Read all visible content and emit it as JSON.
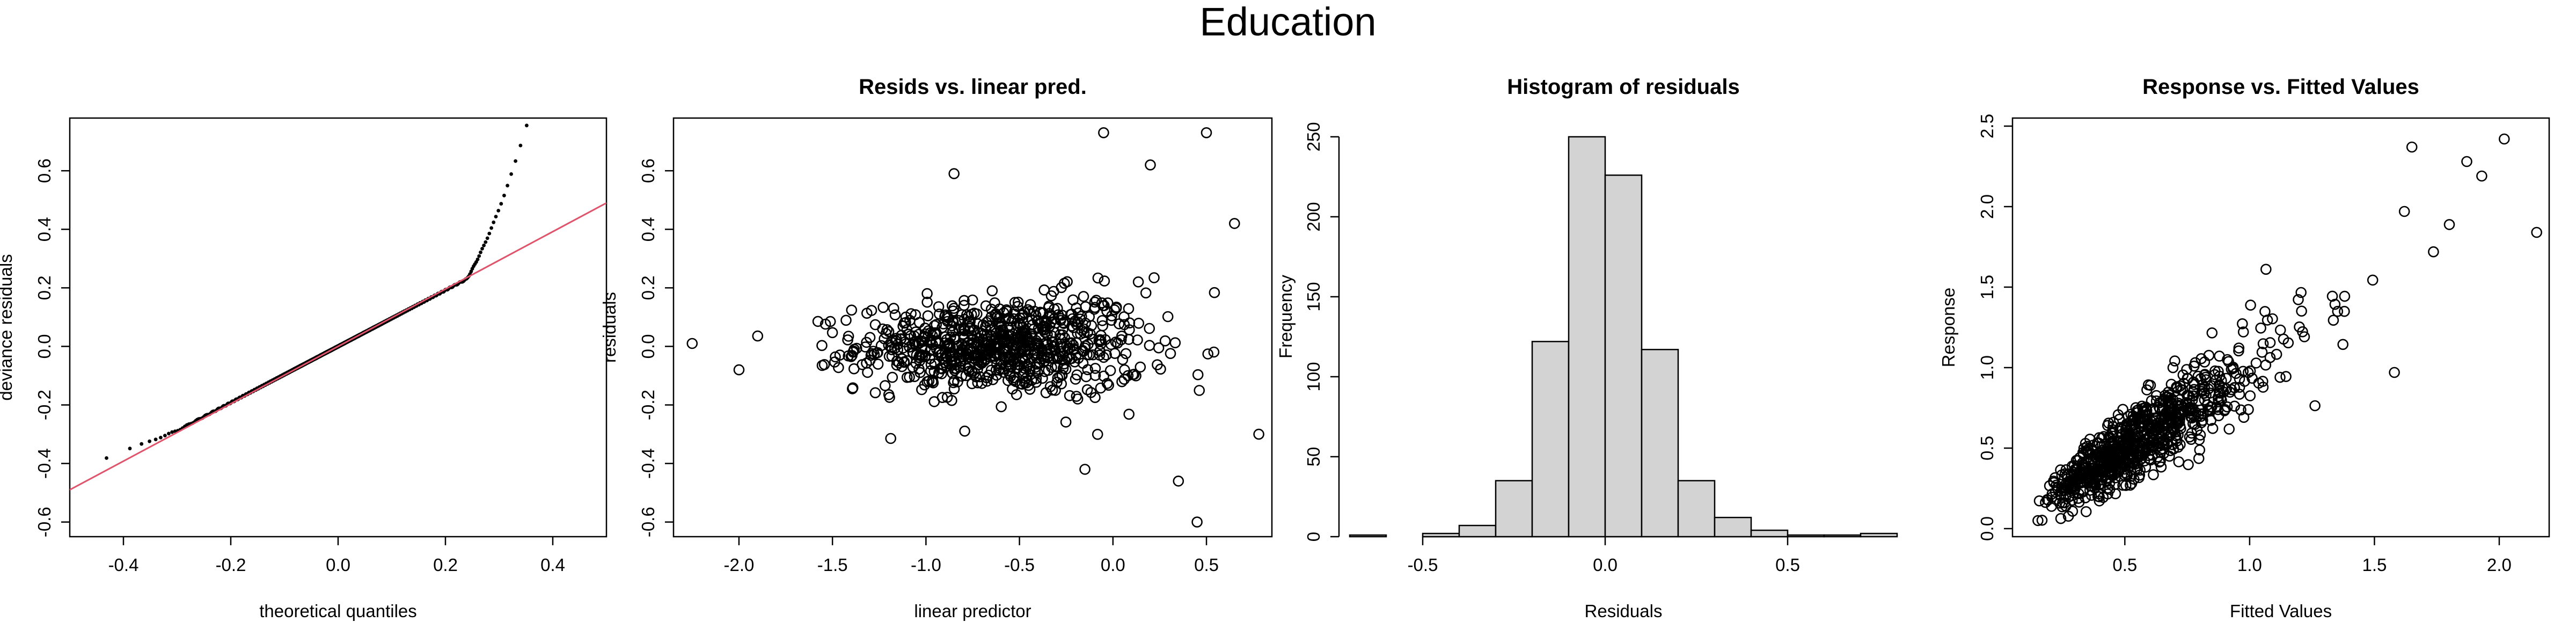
{
  "figure_title": "Education",
  "chart_data": [
    {
      "type": "scatter",
      "title": "",
      "xlabel": "theoretical quantiles",
      "ylabel": "deviance residuals",
      "xlim": [
        -0.5,
        0.5
      ],
      "ylim": [
        -0.65,
        0.78
      ],
      "xticks": [
        "-0.4",
        "-0.2",
        "0.0",
        "0.2",
        "0.4"
      ],
      "yticks": [
        "-0.6",
        "-0.4",
        "-0.2",
        "0.0",
        "0.2",
        "0.4",
        "0.6"
      ],
      "reference_line": {
        "intercept": 0.0,
        "slope": 0.98,
        "color": "#DF536B"
      },
      "series": [
        {
          "description": "sorted deviance residuals vs normal quantiles (~850 points, light tails, heavy upper tail)"
        }
      ]
    },
    {
      "type": "scatter",
      "title": "Resids vs. linear pred.",
      "xlabel": "linear predictor",
      "ylabel": "residuals",
      "xlim": [
        -2.35,
        0.85
      ],
      "ylim": [
        -0.65,
        0.78
      ],
      "xticks": [
        "-2.0",
        "-1.5",
        "-1.0",
        "-0.5",
        "0.0",
        "0.5"
      ],
      "yticks": [
        "-0.6",
        "-0.4",
        "-0.2",
        "0.0",
        "0.2",
        "0.4",
        "0.6"
      ],
      "series": [
        {
          "description": "~850 points centered near x=-0.6, y=0, spread increasing to the right",
          "highlighted_points": [
            [
              -2.25,
              0.01
            ],
            [
              -2.0,
              -0.08
            ],
            [
              -0.85,
              0.59
            ],
            [
              -0.05,
              0.73
            ],
            [
              0.2,
              0.62
            ],
            [
              0.5,
              0.73
            ],
            [
              0.65,
              0.42
            ],
            [
              0.78,
              -0.3
            ],
            [
              0.45,
              -0.6
            ],
            [
              0.35,
              -0.46
            ],
            [
              -0.15,
              -0.42
            ]
          ]
        }
      ]
    },
    {
      "type": "bar",
      "title": "Histogram of residuals",
      "xlabel": "Residuals",
      "ylabel": "Frequency",
      "xlim": [
        -0.7,
        0.8
      ],
      "ylim": [
        0,
        255
      ],
      "xticks": [
        "-0.5",
        "0.0",
        "0.5"
      ],
      "yticks": [
        "0",
        "50",
        "100",
        "150",
        "200",
        "250"
      ],
      "bin_edges": [
        -0.7,
        -0.6,
        -0.5,
        -0.4,
        -0.3,
        -0.2,
        -0.1,
        0.0,
        0.1,
        0.2,
        0.3,
        0.4,
        0.5,
        0.6,
        0.7,
        0.8
      ],
      "values": [
        1,
        0,
        2,
        7,
        35,
        122,
        250,
        226,
        117,
        35,
        12,
        4,
        1,
        1,
        2
      ],
      "bar_color": "#D3D3D3"
    },
    {
      "type": "scatter",
      "title": "Response vs. Fitted Values",
      "xlabel": "Fitted Values",
      "ylabel": "Response",
      "xlim": [
        0.05,
        2.2
      ],
      "ylim": [
        -0.05,
        2.55
      ],
      "xticks": [
        "0.5",
        "1.0",
        "1.5",
        "2.0"
      ],
      "yticks": [
        "0.0",
        "0.5",
        "1.0",
        "1.5",
        "2.0",
        "2.5"
      ],
      "series": [
        {
          "description": "~850 points along y=x, dense in 0.2-0.9, sparser up to 2.1",
          "highlighted_points": [
            [
              2.02,
              2.42
            ],
            [
              2.15,
              1.84
            ],
            [
              1.87,
              2.28
            ],
            [
              1.93,
              2.19
            ],
            [
              1.65,
              2.37
            ],
            [
              1.62,
              1.97
            ],
            [
              1.58,
              0.97
            ]
          ]
        }
      ]
    }
  ]
}
